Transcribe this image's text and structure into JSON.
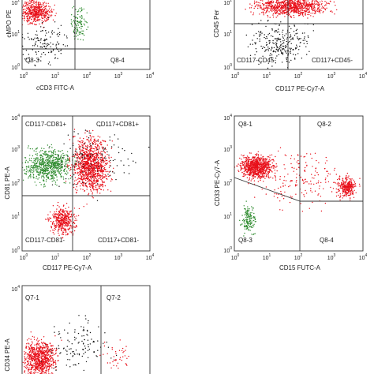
{
  "panels": [
    {
      "x_label": "cCD3 FITC-A",
      "y_label": "cMPO PE",
      "x_ticks": [
        {
          "base": "10",
          "exp": "0"
        },
        {
          "base": "10",
          "exp": "1"
        },
        {
          "base": "10",
          "exp": "2"
        },
        {
          "base": "10",
          "exp": "3"
        },
        {
          "base": "10",
          "exp": "4"
        }
      ],
      "y_ticks": [
        {
          "base": "10",
          "exp": "0"
        },
        {
          "base": "10",
          "exp": "1"
        },
        {
          "base": "10",
          "exp": "2"
        }
      ],
      "gate_labels": [
        "Q8-3",
        "Q8-4"
      ]
    },
    {
      "x_label": "CD117 PE-Cy7-A",
      "y_label": "CD45 Per",
      "x_ticks": [
        {
          "base": "10",
          "exp": "0"
        },
        {
          "base": "10",
          "exp": "1"
        },
        {
          "base": "10",
          "exp": "2"
        },
        {
          "base": "10",
          "exp": "3"
        },
        {
          "base": "10",
          "exp": "4"
        }
      ],
      "y_ticks": [
        {
          "base": "10",
          "exp": "0"
        },
        {
          "base": "10",
          "exp": "1"
        },
        {
          "base": "10",
          "exp": "2"
        }
      ],
      "gate_labels": [
        "CD117-CD45-",
        "CD117+CD45-"
      ]
    },
    {
      "x_label": "CD117 PE-Cy7-A",
      "y_label": "CD81 PE-A",
      "x_ticks": [
        {
          "base": "10",
          "exp": "0"
        },
        {
          "base": "10",
          "exp": "1"
        },
        {
          "base": "10",
          "exp": "2"
        },
        {
          "base": "10",
          "exp": "3"
        },
        {
          "base": "10",
          "exp": "4"
        }
      ],
      "y_ticks": [
        {
          "base": "10",
          "exp": "0"
        },
        {
          "base": "10",
          "exp": "1"
        },
        {
          "base": "10",
          "exp": "2"
        },
        {
          "base": "10",
          "exp": "3"
        },
        {
          "base": "10",
          "exp": "4"
        }
      ],
      "gate_labels": [
        "CD117-CD81+",
        "CD117+CD81+",
        "CD117-CD81-",
        "CD117+CD81-"
      ]
    },
    {
      "x_label": "CD15 FUTC-A",
      "y_label": "CD33 PE-Cy7-A",
      "x_ticks": [
        {
          "base": "10",
          "exp": "0"
        },
        {
          "base": "10",
          "exp": "1"
        },
        {
          "base": "10",
          "exp": "2"
        },
        {
          "base": "10",
          "exp": "3"
        },
        {
          "base": "10",
          "exp": "4"
        }
      ],
      "y_ticks": [
        {
          "base": "10",
          "exp": "0"
        },
        {
          "base": "10",
          "exp": "1"
        },
        {
          "base": "10",
          "exp": "2"
        },
        {
          "base": "10",
          "exp": "3"
        },
        {
          "base": "10",
          "exp": "4"
        }
      ],
      "gate_labels": [
        "Q8-1",
        "Q8-2",
        "Q8-3",
        "Q8-4"
      ]
    },
    {
      "x_label": "",
      "y_label": "CD34 PE-A",
      "x_ticks": [],
      "y_ticks": [
        {
          "base": "10",
          "exp": "4"
        }
      ],
      "gate_labels": [
        "Q7-1",
        "Q7-2"
      ]
    }
  ]
}
